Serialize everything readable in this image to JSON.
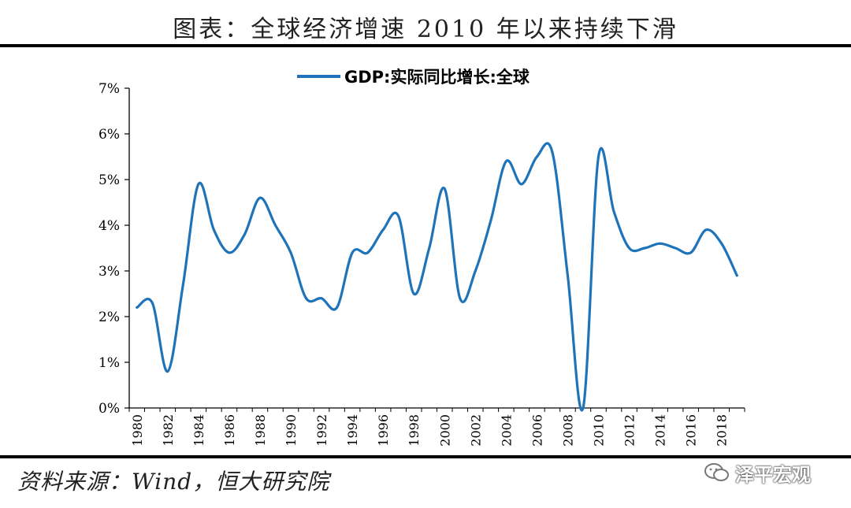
{
  "header": {
    "title": "图表：全球经济增速 2010 年以来持续下滑"
  },
  "footer": {
    "source": "资料来源：Wind，恒大研究院",
    "watermark": "泽平宏观"
  },
  "colors": {
    "line": "#1f74b9",
    "axis": "#000000",
    "text": "#000000"
  },
  "chart_data": {
    "type": "line",
    "title": "",
    "xlabel": "",
    "ylabel": "",
    "legend": {
      "position": "top-center",
      "entries": [
        "GDP:实际同比增长:全球"
      ]
    },
    "ylim": [
      0,
      7
    ],
    "yticks": [
      "0%",
      "1%",
      "2%",
      "3%",
      "4%",
      "5%",
      "6%",
      "7%"
    ],
    "xticks": [
      "1980",
      "1982",
      "1984",
      "1986",
      "1988",
      "1990",
      "1992",
      "1994",
      "1996",
      "1998",
      "2000",
      "2002",
      "2004",
      "2006",
      "2008",
      "2010",
      "2012",
      "2014",
      "2016",
      "2018"
    ],
    "grid": false,
    "x": [
      1980,
      1981,
      1982,
      1983,
      1984,
      1985,
      1986,
      1987,
      1988,
      1989,
      1990,
      1991,
      1992,
      1993,
      1994,
      1995,
      1996,
      1997,
      1998,
      1999,
      2000,
      2001,
      2002,
      2003,
      2004,
      2005,
      2006,
      2007,
      2008,
      2009,
      2010,
      2011,
      2012,
      2013,
      2014,
      2015,
      2016,
      2017,
      2018,
      2019
    ],
    "series": [
      {
        "name": "GDP:实际同比增长:全球",
        "values": [
          2.2,
          2.3,
          0.8,
          2.7,
          4.9,
          3.9,
          3.4,
          3.8,
          4.6,
          4.0,
          3.4,
          2.4,
          2.4,
          2.2,
          3.4,
          3.4,
          3.9,
          4.2,
          2.5,
          3.5,
          4.8,
          2.4,
          3.0,
          4.1,
          5.4,
          4.9,
          5.5,
          5.6,
          2.9,
          0.0,
          5.5,
          4.3,
          3.5,
          3.5,
          3.6,
          3.5,
          3.4,
          3.9,
          3.6,
          2.9
        ]
      }
    ]
  }
}
